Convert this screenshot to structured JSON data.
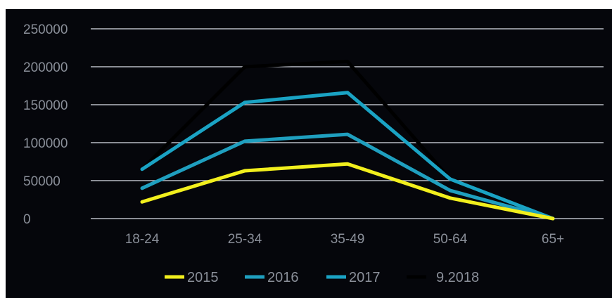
{
  "chart_data": {
    "type": "line",
    "categories": [
      "18-24",
      "25-34",
      "35-49",
      "50-64",
      "65+"
    ],
    "ylim": [
      0,
      250000
    ],
    "yticks": [
      0,
      50000,
      100000,
      150000,
      200000,
      250000
    ],
    "ytick_labels": [
      "0",
      "50000",
      "100000",
      "150000",
      "200000",
      "250000"
    ],
    "grid": true,
    "legend_position": "bottom",
    "series": [
      {
        "name": "2015",
        "color": "#f2ef1d",
        "values": [
          22000,
          63000,
          72000,
          27000,
          0
        ]
      },
      {
        "name": "2016",
        "color": "#1f9fbf",
        "values": [
          40000,
          102000,
          111000,
          37000,
          0
        ]
      },
      {
        "name": "2017",
        "color": "#1aa3c4",
        "values": [
          65000,
          153000,
          166000,
          52000,
          0
        ]
      },
      {
        "name": "9.2018",
        "color": "#000000",
        "values": [
          65000,
          200000,
          207000,
          52000,
          0
        ]
      }
    ]
  }
}
